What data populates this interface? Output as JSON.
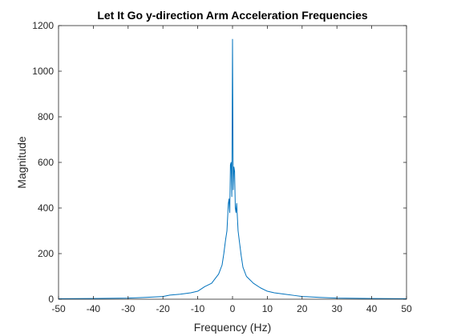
{
  "chart_data": {
    "type": "line",
    "title": "Let It Go y-direction Arm Acceleration Frequencies",
    "xlabel": "Frequency (Hz)",
    "ylabel": "Magnitude",
    "xlim": [
      -50,
      50
    ],
    "ylim": [
      0,
      1200
    ],
    "xticks": [
      -50,
      -40,
      -30,
      -20,
      -10,
      0,
      10,
      20,
      30,
      40,
      50
    ],
    "yticks": [
      0,
      200,
      400,
      600,
      800,
      1000,
      1200
    ],
    "grid": false,
    "line_color": "#0072BD",
    "series": [
      {
        "x": [
          -50,
          -40,
          -30,
          -25,
          -20,
          -18,
          -15,
          -12,
          -10,
          -8,
          -6,
          -5,
          -4,
          -3,
          -2.5,
          -2,
          -1.6,
          -1.2,
          -1,
          -0.8,
          -0.6,
          -0.4,
          -0.2,
          0,
          0.2,
          0.4,
          0.6,
          0.8,
          1,
          1.2,
          1.6,
          2,
          2.5,
          3,
          4,
          5,
          6,
          8,
          10,
          12,
          15,
          18,
          20,
          25,
          30,
          40,
          50
        ],
        "y": [
          2,
          3,
          5,
          8,
          12,
          18,
          22,
          28,
          35,
          55,
          70,
          90,
          110,
          150,
          200,
          260,
          300,
          420,
          440,
          380,
          590,
          600,
          450,
          1140,
          480,
          580,
          560,
          400,
          380,
          420,
          300,
          250,
          190,
          140,
          100,
          85,
          70,
          50,
          35,
          28,
          22,
          16,
          12,
          8,
          5,
          3,
          2
        ]
      }
    ]
  }
}
